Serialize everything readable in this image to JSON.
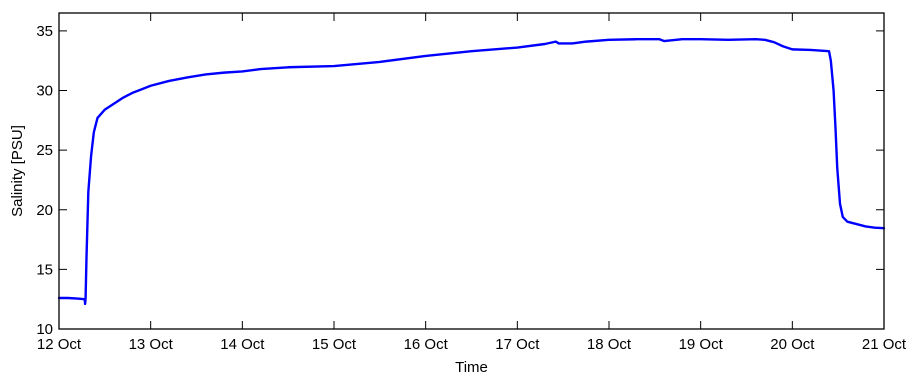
{
  "chart_data": {
    "type": "line",
    "title": "",
    "xlabel": "Time",
    "ylabel": "Salinity [PSU]",
    "xlim": [
      12,
      21
    ],
    "ylim": [
      10,
      36.5
    ],
    "grid": false,
    "x_ticks": [
      12,
      13,
      14,
      15,
      16,
      17,
      18,
      19,
      20,
      21
    ],
    "x_tick_labels": [
      "12 Oct",
      "13 Oct",
      "14 Oct",
      "15 Oct",
      "16 Oct",
      "17 Oct",
      "18 Oct",
      "19 Oct",
      "20 Oct",
      "21 Oct"
    ],
    "y_ticks": [
      10,
      15,
      20,
      25,
      30,
      35
    ],
    "y_tick_labels": [
      "10",
      "15",
      "20",
      "25",
      "30",
      "35"
    ],
    "series": [
      {
        "color": "#0000ff",
        "x": [
          12.0,
          12.1,
          12.2,
          12.28,
          12.285,
          12.29,
          12.3,
          12.32,
          12.35,
          12.38,
          12.42,
          12.5,
          12.6,
          12.7,
          12.8,
          12.9,
          13.0,
          13.2,
          13.4,
          13.6,
          13.8,
          14.0,
          14.2,
          14.5,
          15.0,
          15.5,
          16.0,
          16.5,
          17.0,
          17.3,
          17.42,
          17.45,
          17.6,
          17.75,
          18.0,
          18.3,
          18.55,
          18.6,
          18.8,
          19.0,
          19.3,
          19.6,
          19.7,
          19.8,
          19.9,
          20.0,
          20.2,
          20.3,
          20.4,
          20.42,
          20.45,
          20.47,
          20.49,
          20.52,
          20.55,
          20.6,
          20.7,
          20.8,
          20.9,
          21.0
        ],
        "y": [
          12.6,
          12.6,
          12.55,
          12.5,
          12.1,
          12.6,
          16.0,
          21.5,
          24.5,
          26.5,
          27.7,
          28.4,
          28.9,
          29.4,
          29.8,
          30.1,
          30.4,
          30.8,
          31.1,
          31.35,
          31.5,
          31.6,
          31.8,
          31.95,
          32.05,
          32.4,
          32.9,
          33.3,
          33.6,
          33.9,
          34.1,
          33.95,
          33.95,
          34.1,
          34.25,
          34.3,
          34.3,
          34.15,
          34.3,
          34.3,
          34.25,
          34.3,
          34.25,
          34.05,
          33.7,
          33.45,
          33.4,
          33.35,
          33.3,
          32.5,
          30.0,
          27.0,
          23.5,
          20.5,
          19.4,
          19.0,
          18.8,
          18.6,
          18.5,
          18.45
        ]
      }
    ]
  }
}
